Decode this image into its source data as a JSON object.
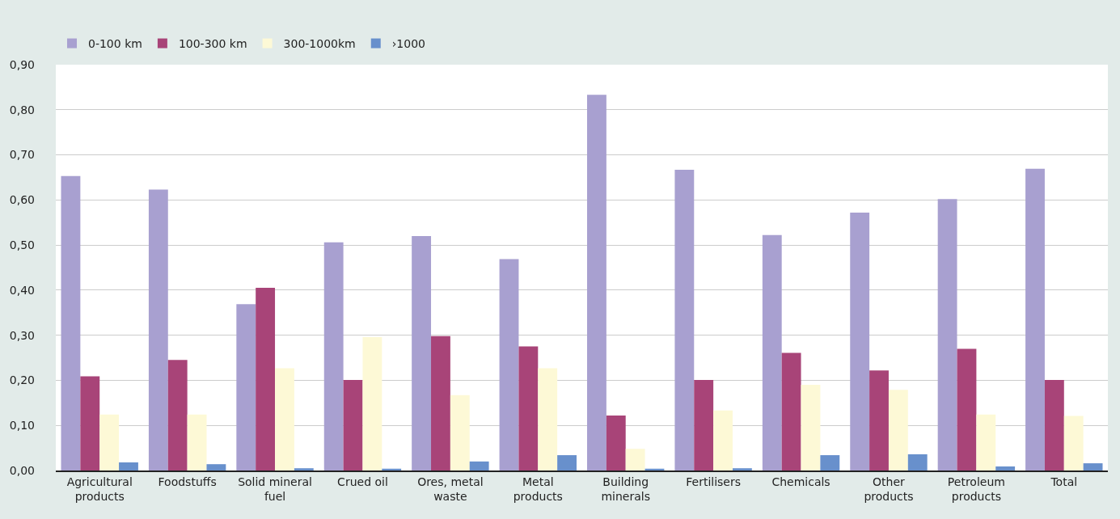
{
  "chart_data": {
    "type": "bar",
    "categories": [
      "Agricultural products",
      "Foodstuffs",
      "Solid mineral fuel",
      "Crued oil",
      "Ores, metal waste",
      "Metal products",
      "Building minerals",
      "Fertilisers",
      "Chemicals",
      "Other products",
      "Petroleum products",
      "Total"
    ],
    "series": [
      {
        "name": "0-100 km",
        "color": "#a8a0d0",
        "values": [
          0.653,
          0.623,
          0.369,
          0.506,
          0.52,
          0.469,
          0.833,
          0.667,
          0.522,
          0.572,
          0.602,
          0.669
        ]
      },
      {
        "name": "100-300 km",
        "color": "#a84478",
        "values": [
          0.209,
          0.245,
          0.405,
          0.201,
          0.298,
          0.275,
          0.122,
          0.201,
          0.261,
          0.222,
          0.27,
          0.201
        ]
      },
      {
        "name": "300-1000km",
        "color": "#fdf9d6",
        "values": [
          0.124,
          0.124,
          0.227,
          0.296,
          0.167,
          0.227,
          0.048,
          0.133,
          0.19,
          0.179,
          0.124,
          0.121
        ]
      },
      {
        "name": "›1000",
        "color": "#6890cc",
        "values": [
          0.018,
          0.014,
          0.005,
          0.004,
          0.02,
          0.034,
          0.004,
          0.005,
          0.034,
          0.036,
          0.009,
          0.016
        ]
      }
    ],
    "ylim": [
      0,
      0.9
    ],
    "yticks": [
      {
        "value": 0,
        "label": "0,00"
      },
      {
        "value": 0.1,
        "label": "0,10"
      },
      {
        "value": 0.2,
        "label": "0,20"
      },
      {
        "value": 0.3,
        "label": "0,30"
      },
      {
        "value": 0.4,
        "label": "0,40"
      },
      {
        "value": 0.5,
        "label": "0,50"
      },
      {
        "value": 0.6,
        "label": "0,60"
      },
      {
        "value": 0.7,
        "label": "0,70"
      },
      {
        "value": 0.8,
        "label": "0,80"
      },
      {
        "value": 0.9,
        "label": "0,90"
      }
    ],
    "grid": "y",
    "legend": "top left"
  }
}
